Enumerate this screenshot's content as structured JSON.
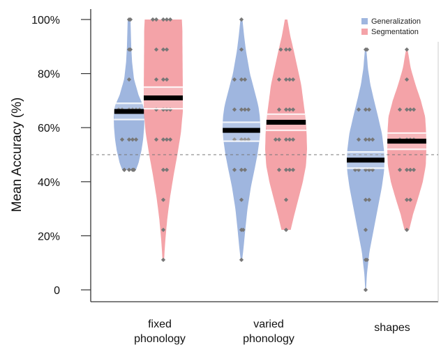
{
  "chart_data": {
    "type": "violin",
    "ylabel": "Mean Accuracy (%)",
    "ylim": [
      0,
      100
    ],
    "yticks": [
      0,
      20,
      40,
      60,
      80,
      100
    ],
    "ytick_labels": [
      "0",
      "20%",
      "40%",
      "60%",
      "80%",
      "100%"
    ],
    "chance_line": 50,
    "categories": [
      {
        "lines": [
          "fixed",
          "phonology"
        ]
      },
      {
        "lines": [
          "varied",
          "phonology"
        ]
      },
      {
        "lines": [
          "shapes"
        ]
      }
    ],
    "legend": {
      "position": "top-right"
    },
    "series": [
      {
        "name": "Generalization",
        "color": "#9fb6df",
        "groups": [
          {
            "mean": 66,
            "ci": [
              63,
              69
            ],
            "range": [
              44.4,
              100
            ],
            "profile": [
              [
                44.4,
                0.45
              ],
              [
                47,
                0.62
              ],
              [
                52,
                0.82
              ],
              [
                56,
                0.92
              ],
              [
                60,
                0.98
              ],
              [
                64,
                1.0
              ],
              [
                68,
                0.93
              ],
              [
                72,
                0.62
              ],
              [
                78,
                0.32
              ],
              [
                84,
                0.2
              ],
              [
                90,
                0.14
              ],
              [
                96,
                0.11
              ],
              [
                100,
                0.09
              ]
            ],
            "points": [
              44.4,
              44.4,
              44.4,
              44.4,
              44.4,
              44.4,
              55.6,
              55.6,
              55.6,
              55.6,
              66.7,
              66.7,
              66.7,
              66.7,
              66.7,
              66.7,
              77.8,
              88.9,
              88.9,
              100,
              100
            ]
          },
          {
            "mean": 59,
            "ci": [
              55,
              62
            ],
            "range": [
              11.1,
              100
            ],
            "profile": [
              [
                11.1,
                0.04
              ],
              [
                16,
                0.12
              ],
              [
                22,
                0.2
              ],
              [
                30,
                0.32
              ],
              [
                38,
                0.5
              ],
              [
                44,
                0.68
              ],
              [
                50,
                0.85
              ],
              [
                56,
                0.97
              ],
              [
                60,
                1.0
              ],
              [
                64,
                0.98
              ],
              [
                68,
                0.9
              ],
              [
                74,
                0.68
              ],
              [
                80,
                0.45
              ],
              [
                88,
                0.25
              ],
              [
                94,
                0.14
              ],
              [
                100,
                0.05
              ]
            ],
            "points": [
              11.1,
              22.2,
              22.2,
              33.3,
              44.4,
              44.4,
              44.4,
              55.6,
              55.6,
              55.6,
              55.6,
              66.7,
              66.7,
              66.7,
              66.7,
              77.8,
              77.8,
              77.8,
              88.9,
              100
            ]
          },
          {
            "mean": 48,
            "ci": [
              45,
              51
            ],
            "range": [
              0,
              88.9
            ],
            "profile": [
              [
                0,
                0.02
              ],
              [
                6,
                0.07
              ],
              [
                14,
                0.2
              ],
              [
                22,
                0.42
              ],
              [
                30,
                0.64
              ],
              [
                38,
                0.86
              ],
              [
                44,
                0.98
              ],
              [
                48,
                1.0
              ],
              [
                52,
                0.97
              ],
              [
                58,
                0.86
              ],
              [
                64,
                0.66
              ],
              [
                70,
                0.45
              ],
              [
                76,
                0.25
              ],
              [
                82,
                0.12
              ],
              [
                88.9,
                0.04
              ]
            ],
            "points": [
              0,
              11.1,
              11.1,
              22.2,
              33.3,
              33.3,
              44.4,
              44.4,
              44.4,
              44.4,
              44.4,
              55.6,
              55.6,
              55.6,
              55.6,
              66.7,
              66.7,
              66.7,
              88.9,
              88.9
            ]
          }
        ]
      },
      {
        "name": "Segmentation",
        "color": "#f4a3a8",
        "groups": [
          {
            "mean": 71,
            "ci": [
              67,
              75
            ],
            "range": [
              11.1,
              100
            ],
            "profile": [
              [
                11.1,
                0.04
              ],
              [
                18,
                0.1
              ],
              [
                26,
                0.2
              ],
              [
                34,
                0.34
              ],
              [
                42,
                0.52
              ],
              [
                50,
                0.72
              ],
              [
                58,
                0.9
              ],
              [
                66,
                1.0
              ],
              [
                74,
                1.0
              ],
              [
                82,
                0.99
              ],
              [
                90,
                0.98
              ],
              [
                96,
                0.98
              ],
              [
                100,
                0.95
              ]
            ],
            "points": [
              11.1,
              22.2,
              33.3,
              44.4,
              44.4,
              55.6,
              55.6,
              55.6,
              55.6,
              66.7,
              66.7,
              66.7,
              66.7,
              77.8,
              77.8,
              77.8,
              88.9,
              88.9,
              88.9,
              100,
              100,
              100,
              100,
              100
            ]
          },
          {
            "mean": 62,
            "ci": [
              59,
              65
            ],
            "range": [
              22.2,
              100
            ],
            "profile": [
              [
                22.2,
                0.22
              ],
              [
                28,
                0.4
              ],
              [
                34,
                0.6
              ],
              [
                40,
                0.8
              ],
              [
                46,
                0.95
              ],
              [
                52,
                1.0
              ],
              [
                58,
                0.98
              ],
              [
                64,
                0.92
              ],
              [
                70,
                0.82
              ],
              [
                76,
                0.72
              ],
              [
                82,
                0.55
              ],
              [
                88,
                0.38
              ],
              [
                94,
                0.2
              ],
              [
                100,
                0.06
              ]
            ],
            "points": [
              22.2,
              33.3,
              44.4,
              44.4,
              44.4,
              44.4,
              55.6,
              55.6,
              55.6,
              55.6,
              55.6,
              66.7,
              66.7,
              66.7,
              66.7,
              77.8,
              77.8,
              77.8,
              77.8,
              88.9,
              88.9,
              88.9
            ]
          },
          {
            "mean": 55,
            "ci": [
              52,
              58
            ],
            "range": [
              22.2,
              88.9
            ],
            "profile": [
              [
                22.2,
                0.12
              ],
              [
                28,
                0.32
              ],
              [
                34,
                0.58
              ],
              [
                40,
                0.82
              ],
              [
                46,
                0.97
              ],
              [
                52,
                1.0
              ],
              [
                58,
                0.99
              ],
              [
                64,
                0.94
              ],
              [
                70,
                0.72
              ],
              [
                76,
                0.44
              ],
              [
                82,
                0.2
              ],
              [
                88.9,
                0.04
              ]
            ],
            "points": [
              22.2,
              33.3,
              33.3,
              44.4,
              44.4,
              44.4,
              44.4,
              55.6,
              55.6,
              55.6,
              55.6,
              66.7,
              66.7,
              66.7,
              66.7,
              77.8,
              88.9
            ]
          }
        ]
      }
    ]
  }
}
